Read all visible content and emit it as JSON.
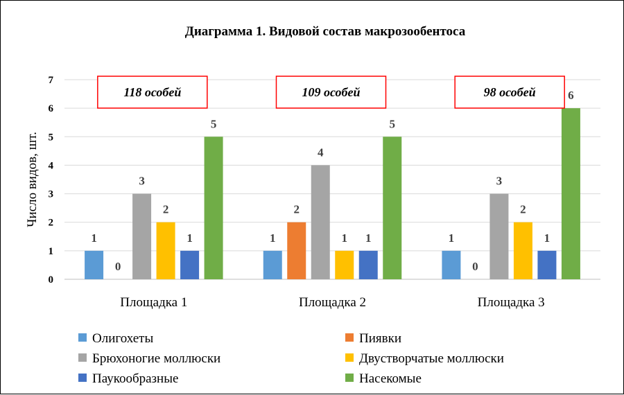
{
  "chart_data": {
    "type": "bar",
    "title": "Диаграмма 1. Видовой состав макрозообентоса",
    "ylabel": "Число видов, шт.",
    "xlabel": "",
    "ylim": [
      0,
      7
    ],
    "yticks": [
      0,
      1,
      2,
      3,
      4,
      5,
      6,
      7
    ],
    "grid": true,
    "legend_position": "bottom",
    "categories": [
      "Площадка 1",
      "Площадка 2",
      "Площадка 3"
    ],
    "series": [
      {
        "name": "Олигохеты",
        "color": "#5B9BD5",
        "values": [
          1,
          1,
          1
        ]
      },
      {
        "name": "Пиявки",
        "color": "#ED7D31",
        "values": [
          0,
          2,
          0
        ]
      },
      {
        "name": "Брюхоногие моллюски",
        "color": "#A5A5A5",
        "values": [
          3,
          4,
          3
        ]
      },
      {
        "name": "Двустворчатые моллюски",
        "color": "#FFC000",
        "values": [
          2,
          1,
          2
        ]
      },
      {
        "name": "Паукообразные",
        "color": "#4472C4",
        "values": [
          1,
          1,
          1
        ]
      },
      {
        "name": "Насекомые",
        "color": "#70AD47",
        "values": [
          5,
          5,
          6
        ]
      }
    ],
    "annotations": [
      "118 особей",
      "109 особей",
      "98 особей"
    ],
    "annotation_box_color": "#FF0000"
  }
}
